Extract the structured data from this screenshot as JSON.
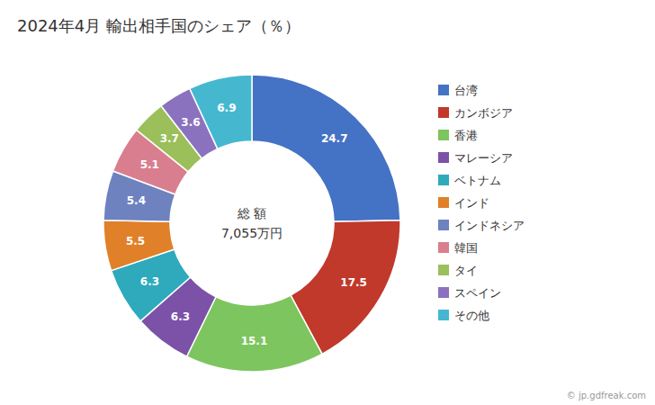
{
  "chart_data": {
    "type": "donut",
    "title": "2024年4月 輸出相手国のシェア（％）",
    "categories": [
      "台湾",
      "カンボジア",
      "香港",
      "マレーシア",
      "ベトナム",
      "インド",
      "インドネシア",
      "韓国",
      "タイ",
      "スペイン",
      "その他"
    ],
    "values": [
      24.7,
      17.5,
      15.1,
      6.3,
      6.3,
      5.5,
      5.4,
      5.1,
      3.7,
      3.6,
      6.9
    ],
    "colors": [
      "#4472C4",
      "#C0392B",
      "#7DC55E",
      "#7B52A8",
      "#2EAABC",
      "#E08028",
      "#6E82C0",
      "#D97E8E",
      "#9BBF5A",
      "#8B72BE",
      "#45B8D0"
    ],
    "data_labels": true,
    "legend": "right",
    "annotations": [
      "総 額",
      "7,055万円",
      "© jp.gdfreak.com"
    ]
  }
}
